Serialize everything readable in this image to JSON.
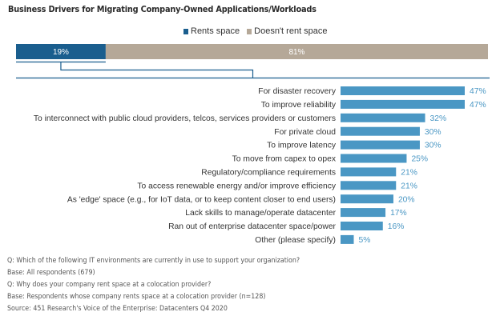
{
  "chart_data": {
    "type": "bar",
    "title": "Business Drivers for Migrating Company-Owned Applications/Workloads",
    "legend": {
      "placement": "top-center",
      "entries": [
        {
          "label": "Rents space",
          "color": "#1a5e8e"
        },
        {
          "label": "Doesn't rent space",
          "color": "#b5a898"
        }
      ]
    },
    "stacked_summary": {
      "type": "stacked-bar",
      "segments": [
        {
          "name": "Rents space",
          "value": 19,
          "label": "19%",
          "color": "#1a5e8e"
        },
        {
          "name": "Doesn't rent space",
          "value": 81,
          "label": "81%",
          "color": "#b5a898"
        }
      ]
    },
    "orientation": "horizontal",
    "categories": [
      "For disaster recovery",
      "To improve reliability",
      "To interconnect with public cloud providers, telcos, services providers or customers",
      "For private cloud",
      "To improve latency",
      "To move from capex to opex",
      "Regulatory/compliance requirements",
      "To access renewable energy and/or improve efficiency",
      "As 'edge' space (e.g., for IoT data, or to keep content closer to end users)",
      "Lack skills to manage/operate datacenter",
      "Ran out of enterprise datacenter space/power",
      "Other (please specify)"
    ],
    "values": [
      47,
      47,
      32,
      30,
      30,
      25,
      21,
      21,
      20,
      17,
      16,
      5
    ],
    "value_labels": [
      "47%",
      "47%",
      "32%",
      "30%",
      "30%",
      "25%",
      "21%",
      "21%",
      "20%",
      "17%",
      "16%",
      "5%"
    ],
    "unit": "%",
    "bar_color": "#4a97c4",
    "label_color": "#4a97c4",
    "xlabel": "",
    "ylabel": "",
    "xlim": [
      0,
      100
    ],
    "grid": false
  },
  "footer": {
    "lines": [
      "Q: Which of the following IT environments are currently in use to support your organization?",
      "Base: All respondents (679)",
      "Q: Why does your company rent space at a colocation provider?",
      "Base: Respondents whose company rents space at a colocation provider (n=128)",
      "Source: 451 Research's Voice of the Enterprise: Datacenters Q4 2020"
    ]
  }
}
